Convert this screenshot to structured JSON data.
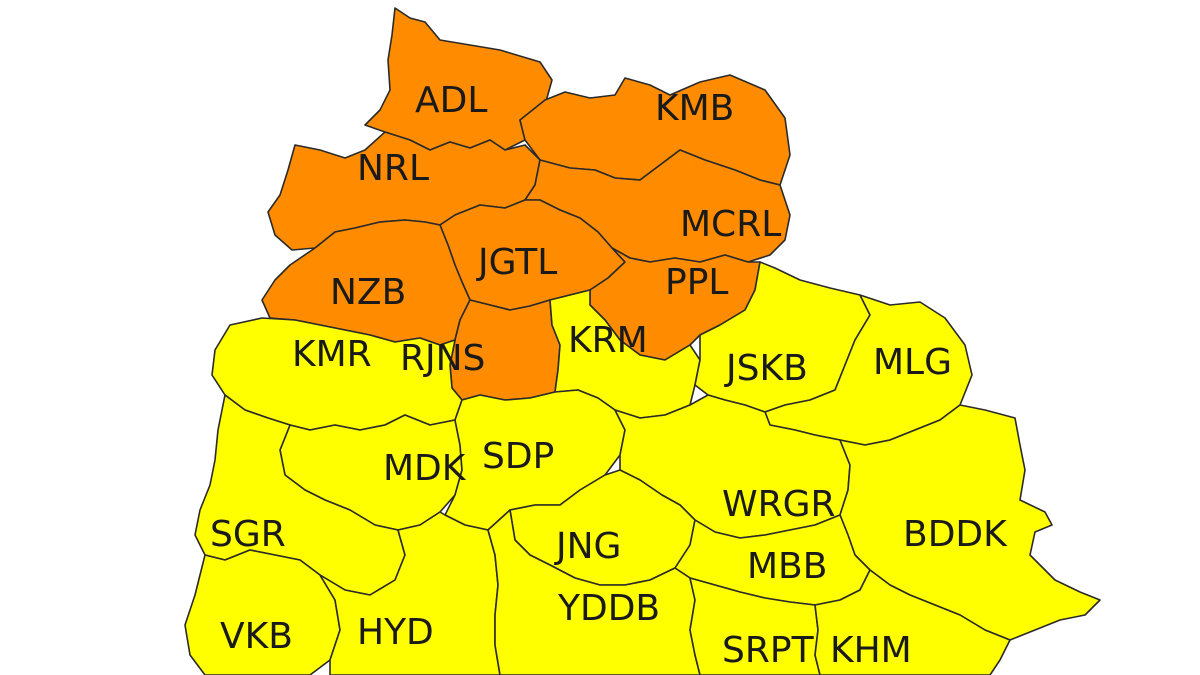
{
  "legend": {
    "alert_orange": "#ff8c00",
    "alert_yellow": "#ffff00",
    "boundary": "#2a2a2a"
  },
  "districts": [
    {
      "code": "ADL",
      "alert": "orange"
    },
    {
      "code": "KMB",
      "alert": "orange"
    },
    {
      "code": "NRL",
      "alert": "orange"
    },
    {
      "code": "MCRL",
      "alert": "orange"
    },
    {
      "code": "JGTL",
      "alert": "orange"
    },
    {
      "code": "PPL",
      "alert": "orange"
    },
    {
      "code": "NZB",
      "alert": "orange"
    },
    {
      "code": "RJNS",
      "alert": "orange"
    },
    {
      "code": "KMR",
      "alert": "yellow"
    },
    {
      "code": "KRM",
      "alert": "yellow"
    },
    {
      "code": "JSKB",
      "alert": "yellow"
    },
    {
      "code": "MLG",
      "alert": "yellow"
    },
    {
      "code": "MDK",
      "alert": "yellow"
    },
    {
      "code": "SDP",
      "alert": "yellow"
    },
    {
      "code": "WRGR",
      "alert": "yellow"
    },
    {
      "code": "BDDK",
      "alert": "yellow"
    },
    {
      "code": "SGR",
      "alert": "yellow"
    },
    {
      "code": "JNG",
      "alert": "yellow"
    },
    {
      "code": "MBB",
      "alert": "yellow"
    },
    {
      "code": "VKB",
      "alert": "yellow"
    },
    {
      "code": "HYD",
      "alert": "yellow"
    },
    {
      "code": "YDDB",
      "alert": "yellow"
    },
    {
      "code": "SRPT",
      "alert": "yellow"
    },
    {
      "code": "KHM",
      "alert": "yellow"
    }
  ]
}
